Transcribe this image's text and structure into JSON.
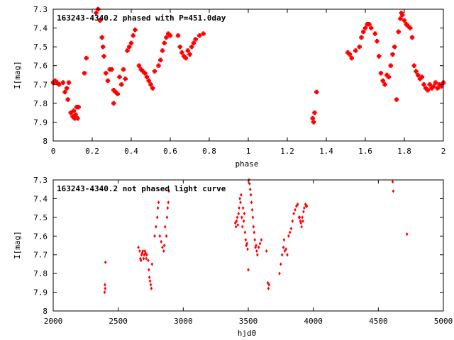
{
  "colors": {
    "points": "#ff0000",
    "frame": "#000000",
    "background": "#ffffff"
  },
  "chart_data": [
    {
      "type": "scatter",
      "title": "163243-4340.2 phased with P=451.0day",
      "xlabel": "phase",
      "ylabel": "I[mag]",
      "xlim": [
        0,
        2
      ],
      "ylim": [
        7.3,
        8
      ],
      "y_inverted": true,
      "grid": false,
      "legend": "none",
      "xticks": [
        0,
        0.2,
        0.4,
        0.6,
        0.8,
        1,
        1.2,
        1.4,
        1.6,
        1.8,
        2
      ],
      "xtick_labels": [
        "0",
        "0.2",
        "0.4",
        "0.6",
        "0.8",
        "1",
        "1.2",
        "1.4",
        "1.6",
        "1.8",
        "2"
      ],
      "yticks": [
        7.3,
        7.4,
        7.5,
        7.6,
        7.7,
        7.8,
        7.9,
        8
      ],
      "ytick_labels": [
        "7.3",
        "7.4",
        "7.5",
        "7.6",
        "7.7",
        "7.8",
        "7.9",
        "8"
      ],
      "marker": "filled-cross",
      "x": [
        0.0,
        0.01,
        0.02,
        0.03,
        0.05,
        0.06,
        0.07,
        0.075,
        0.08,
        0.09,
        0.1,
        0.105,
        0.11,
        0.115,
        0.12,
        0.125,
        0.13,
        0.16,
        0.17,
        0.22,
        0.23,
        0.24,
        0.25,
        0.255,
        0.26,
        0.27,
        0.28,
        0.29,
        0.3,
        0.31,
        0.31,
        0.32,
        0.33,
        0.34,
        0.35,
        0.36,
        0.37,
        0.38,
        0.39,
        0.4,
        0.41,
        0.42,
        0.44,
        0.45,
        0.46,
        0.47,
        0.48,
        0.49,
        0.5,
        0.51,
        0.52,
        0.54,
        0.55,
        0.56,
        0.57,
        0.58,
        0.59,
        0.6,
        0.64,
        0.65,
        0.66,
        0.67,
        0.68,
        0.69,
        0.7,
        0.71,
        0.72,
        0.73,
        0.75,
        0.77,
        1.33,
        1.335,
        1.34,
        1.35,
        1.51,
        1.52,
        1.53,
        1.55,
        1.57,
        1.58,
        1.59,
        1.6,
        1.61,
        1.62,
        1.63,
        1.65,
        1.66,
        1.67,
        1.68,
        1.69,
        1.7,
        1.71,
        1.72,
        1.73,
        1.74,
        1.75,
        1.76,
        1.77,
        1.78,
        1.785,
        1.79,
        1.8,
        1.81,
        1.82,
        1.83,
        1.84,
        1.85,
        1.86,
        1.87,
        1.88,
        1.89,
        1.9,
        1.91,
        1.92,
        1.93,
        1.94,
        1.95,
        1.96,
        1.97,
        1.98,
        1.99,
        2.0
      ],
      "y": [
        7.69,
        7.68,
        7.69,
        7.7,
        7.69,
        7.74,
        7.72,
        7.78,
        7.69,
        7.85,
        7.87,
        7.84,
        7.88,
        7.86,
        7.82,
        7.88,
        7.82,
        7.64,
        7.56,
        7.32,
        7.3,
        7.36,
        7.45,
        7.5,
        7.55,
        7.64,
        7.68,
        7.62,
        7.62,
        7.8,
        7.73,
        7.74,
        7.75,
        7.66,
        7.7,
        7.62,
        7.67,
        7.52,
        7.5,
        7.48,
        7.44,
        7.41,
        7.6,
        7.62,
        7.63,
        7.64,
        7.66,
        7.68,
        7.7,
        7.72,
        7.63,
        7.6,
        7.57,
        7.52,
        7.48,
        7.45,
        7.43,
        7.44,
        7.44,
        7.5,
        7.53,
        7.55,
        7.56,
        7.52,
        7.54,
        7.5,
        7.48,
        7.46,
        7.44,
        7.43,
        7.88,
        7.9,
        7.85,
        7.74,
        7.53,
        7.54,
        7.56,
        7.52,
        7.5,
        7.45,
        7.42,
        7.4,
        7.38,
        7.38,
        7.4,
        7.43,
        7.47,
        7.55,
        7.64,
        7.68,
        7.7,
        7.65,
        7.66,
        7.6,
        7.54,
        7.5,
        7.78,
        7.42,
        7.35,
        7.32,
        7.33,
        7.36,
        7.38,
        7.39,
        7.4,
        7.45,
        7.6,
        7.63,
        7.65,
        7.67,
        7.66,
        7.7,
        7.72,
        7.73,
        7.7,
        7.72,
        7.71,
        7.69,
        7.72,
        7.7,
        7.71,
        7.69
      ]
    },
    {
      "type": "scatter",
      "title": "163243-4340.2 not phased light curve",
      "xlabel": "hjd0",
      "ylabel": "I[mag]",
      "xlim": [
        2000,
        5000
      ],
      "ylim": [
        7.3,
        8
      ],
      "y_inverted": true,
      "grid": false,
      "legend": "none",
      "xticks": [
        2000,
        2500,
        3000,
        3500,
        4000,
        4500,
        5000
      ],
      "xtick_labels": [
        "2000",
        "2500",
        "3000",
        "3500",
        "4000",
        "4500",
        "5000"
      ],
      "yticks": [
        7.3,
        7.4,
        7.5,
        7.6,
        7.7,
        7.8,
        7.9,
        8
      ],
      "ytick_labels": [
        "7.3",
        "7.4",
        "7.5",
        "7.6",
        "7.7",
        "7.8",
        "7.9",
        "8"
      ],
      "marker": "small-diamond",
      "x": [
        2395,
        2398,
        2400,
        2402,
        2655,
        2665,
        2670,
        2675,
        2680,
        2685,
        2690,
        2695,
        2700,
        2705,
        2710,
        2715,
        2720,
        2730,
        2735,
        2740,
        2745,
        2750,
        2755,
        2760,
        2780,
        2790,
        2800,
        2805,
        2810,
        2820,
        2830,
        2840,
        2850,
        2855,
        2860,
        2870,
        2875,
        2880,
        2885,
        2890,
        3400,
        3405,
        3410,
        3415,
        3420,
        3425,
        3430,
        3435,
        3440,
        3445,
        3450,
        3455,
        3460,
        3465,
        3470,
        3475,
        3480,
        3485,
        3490,
        3495,
        3500,
        3505,
        3510,
        3515,
        3520,
        3525,
        3530,
        3535,
        3540,
        3545,
        3550,
        3555,
        3560,
        3565,
        3570,
        3580,
        3590,
        3600,
        3640,
        3650,
        3655,
        3660,
        3740,
        3750,
        3760,
        3770,
        3775,
        3780,
        3790,
        3800,
        3810,
        3820,
        3830,
        3840,
        3850,
        3860,
        3870,
        3880,
        3890,
        3895,
        3900,
        3905,
        3910,
        3915,
        3920,
        3925,
        3930,
        3940,
        3945,
        3950,
        4610,
        4615,
        4720
      ],
      "y": [
        7.9,
        7.86,
        7.88,
        7.74,
        7.66,
        7.68,
        7.72,
        7.73,
        7.7,
        7.69,
        7.68,
        7.72,
        7.7,
        7.68,
        7.69,
        7.72,
        7.7,
        7.73,
        7.78,
        7.82,
        7.84,
        7.86,
        7.88,
        7.75,
        7.6,
        7.55,
        7.5,
        7.45,
        7.42,
        7.6,
        7.63,
        7.66,
        7.68,
        7.65,
        7.55,
        7.6,
        7.5,
        7.45,
        7.42,
        7.36,
        7.53,
        7.55,
        7.52,
        7.5,
        7.54,
        7.48,
        7.45,
        7.4,
        7.42,
        7.38,
        7.5,
        7.55,
        7.45,
        7.52,
        7.48,
        7.58,
        7.62,
        7.65,
        7.64,
        7.67,
        7.78,
        7.3,
        7.32,
        7.35,
        7.38,
        7.42,
        7.46,
        7.5,
        7.55,
        7.58,
        7.62,
        7.66,
        7.65,
        7.68,
        7.7,
        7.66,
        7.64,
        7.62,
        7.68,
        7.85,
        7.88,
        7.86,
        7.8,
        7.75,
        7.7,
        7.66,
        7.62,
        7.68,
        7.67,
        7.7,
        7.6,
        7.58,
        7.56,
        7.52,
        7.48,
        7.46,
        7.44,
        7.43,
        7.5,
        7.5,
        7.52,
        7.53,
        7.55,
        7.5,
        7.52,
        7.47,
        7.45,
        7.43,
        7.44,
        7.44,
        7.31,
        7.36,
        7.59
      ]
    }
  ]
}
